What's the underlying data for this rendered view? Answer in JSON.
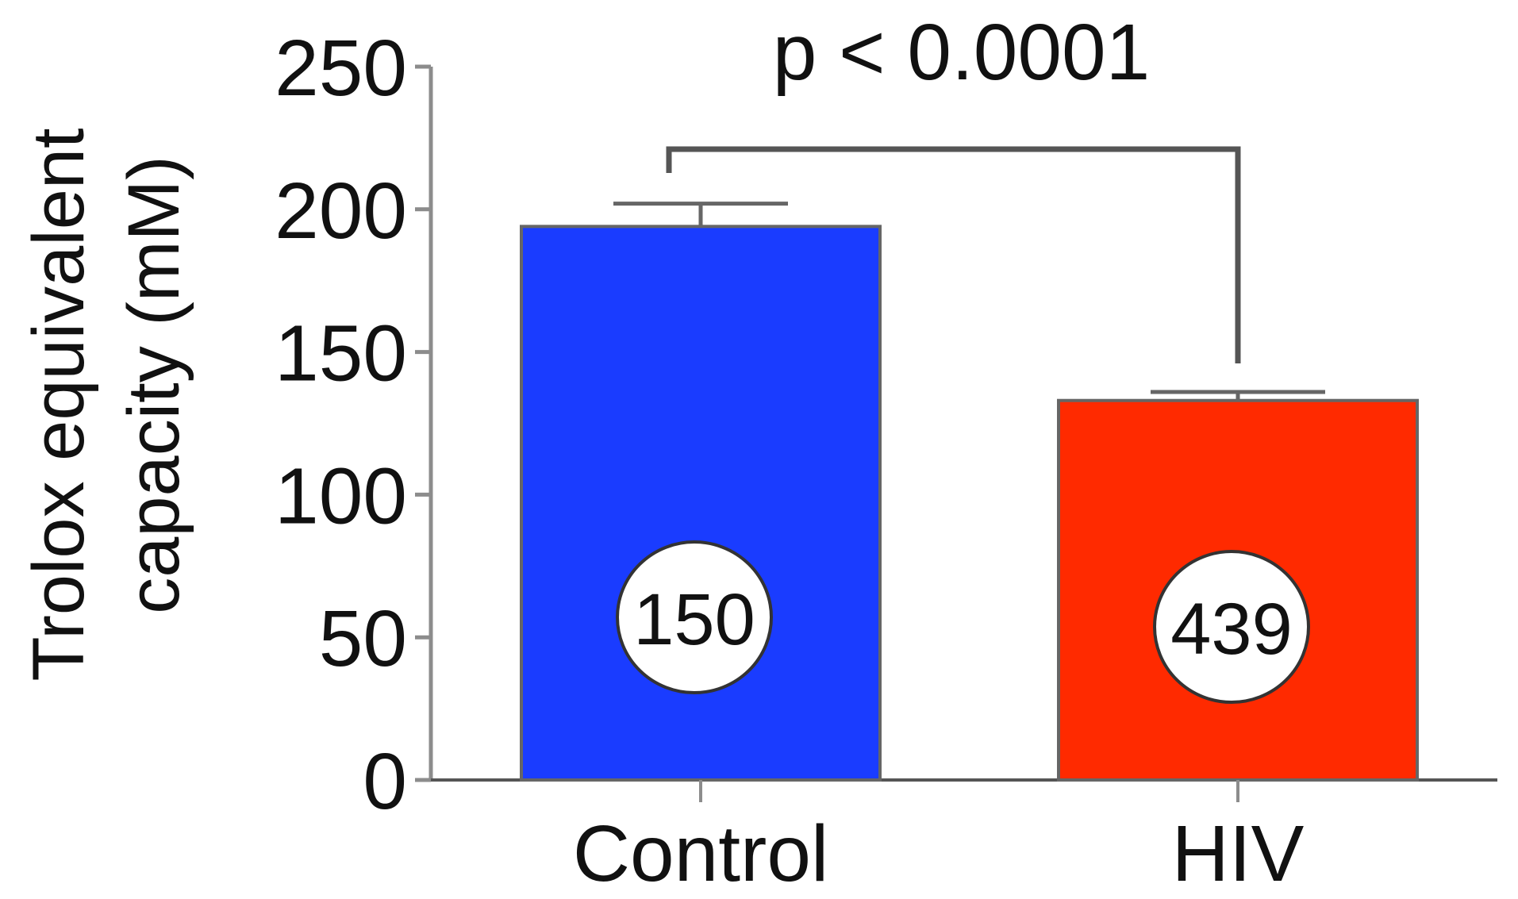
{
  "chart_data": {
    "type": "bar",
    "title": "",
    "xlabel": "",
    "ylabel": "Trolox equivalent capacity (mM)",
    "ylabel_lines": [
      "Trolox equivalent",
      "capacity (mM)"
    ],
    "ylim": [
      0,
      250
    ],
    "yticks": [
      0,
      50,
      100,
      150,
      200,
      250
    ],
    "ytick_labels": [
      "0",
      "50",
      "100",
      "150",
      "200",
      "250"
    ],
    "categories": [
      "Control",
      "HIV"
    ],
    "values": [
      194,
      133
    ],
    "errors": [
      8,
      3
    ],
    "sample_sizes": [
      "150",
      "439"
    ],
    "bar_colors": [
      "#1a3cff",
      "#ff2a00"
    ],
    "grid": false,
    "legend": "none",
    "annotations": [
      {
        "text": "p < 0.0001",
        "between": [
          "Control",
          "HIV"
        ]
      }
    ]
  }
}
